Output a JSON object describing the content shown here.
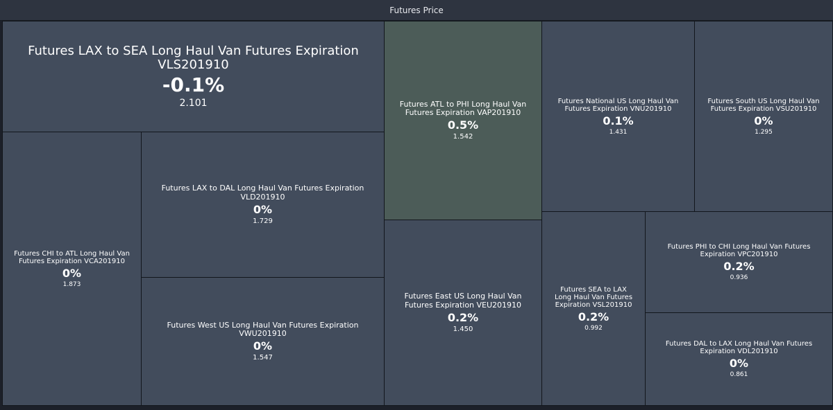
{
  "header": {
    "title": "Futures Price"
  },
  "colors": {
    "header_bg": "#2e3440",
    "page_bg": "#1c2029",
    "neutral": "#424c5c",
    "positive_strong": "#4c5c58",
    "border": "#12161c",
    "text": "#ffffff"
  },
  "chart_data": {
    "type": "treemap",
    "title": "Futures Price",
    "items": [
      {
        "label": "Futures LAX to SEA Long Haul Van Futures Expiration VLS201910",
        "change": "-0.1%",
        "price": "2.101",
        "change_value": -0.1
      },
      {
        "label": "Futures ATL to PHI Long Haul Van Futures Expiration VAP201910",
        "change": "0.5%",
        "price": "1.542",
        "change_value": 0.5
      },
      {
        "label": "Futures National US Long Haul Van Futures Expiration VNU201910",
        "change": "0.1%",
        "price": "1.431",
        "change_value": 0.1
      },
      {
        "label": "Futures South US Long Haul Van Futures Expiration VSU201910",
        "change": "0%",
        "price": "1.295",
        "change_value": 0
      },
      {
        "label": "Futures CHI to ATL Long Haul Van Futures Expiration VCA201910",
        "change": "0%",
        "price": "1.873",
        "change_value": 0
      },
      {
        "label": "Futures LAX to DAL Long Haul Van Futures Expiration VLD201910",
        "change": "0%",
        "price": "1.729",
        "change_value": 0
      },
      {
        "label": "Futures West US Long Haul Van Futures Expiration VWU201910",
        "change": "0%",
        "price": "1.547",
        "change_value": 0
      },
      {
        "label": "Futures East US Long Haul Van Futures Expiration VEU201910",
        "change": "0.2%",
        "price": "1.450",
        "change_value": 0.2
      },
      {
        "label": "Futures SEA to LAX Long Haul Van Futures Expiration VSL201910",
        "change": "0.2%",
        "price": "0.992",
        "change_value": 0.2
      },
      {
        "label": "Futures PHI to CHI Long Haul Van Futures Expiration VPC201910",
        "change": "0.2%",
        "price": "0.936",
        "change_value": 0.2
      },
      {
        "label": "Futures DAL to LAX Long Haul Van Futures Expiration VDL201910",
        "change": "0%",
        "price": "0.861",
        "change_value": 0
      }
    ]
  }
}
